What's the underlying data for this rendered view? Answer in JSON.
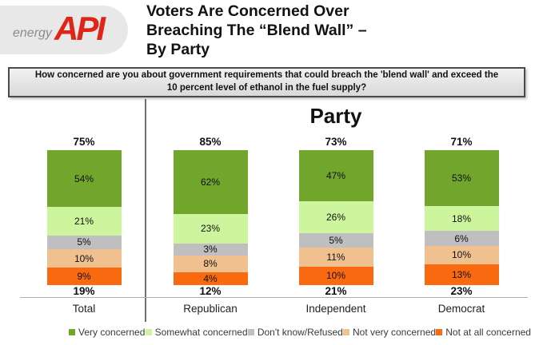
{
  "logo": {
    "energy_label": "energy",
    "api_label": "API"
  },
  "title": {
    "line1": "Voters Are Concerned Over",
    "line2": "Breaching The “Blend Wall” –",
    "line3": "By Party"
  },
  "question": "How concerned are you about government requirements that could breach the 'blend wall' and exceed the 10 percent level of ethanol in the fuel supply?",
  "party_heading": "Party",
  "chart_data": {
    "type": "bar",
    "stacked": true,
    "unit": "%",
    "grid": false,
    "legend_position": "bottom",
    "categories": [
      "Total",
      "Republican",
      "Independent",
      "Democrat"
    ],
    "series": [
      {
        "name": "Very concerned",
        "color": "#71A52C",
        "values": [
          54,
          62,
          47,
          53
        ]
      },
      {
        "name": "Somewhat concerned",
        "color": "#CDF59E",
        "values": [
          21,
          23,
          26,
          18
        ]
      },
      {
        "name": "Don't know/Refused",
        "color": "#BFBFBF",
        "values": [
          5,
          3,
          5,
          6
        ]
      },
      {
        "name": "Not very concerned",
        "color": "#F0C18F",
        "values": [
          10,
          8,
          11,
          10
        ]
      },
      {
        "name": "Not at all concerned",
        "color": "#F96A10",
        "values": [
          9,
          4,
          10,
          13
        ]
      }
    ],
    "total_concerned_labels": [
      "75%",
      "85%",
      "73%",
      "71%"
    ],
    "total_not_concerned_labels": [
      "19%",
      "12%",
      "21%",
      "23%"
    ]
  },
  "colors": {
    "logo_red": "#DF2518",
    "logo_pill_gray": "#E8E8E8",
    "question_box_border": "#4A4A4A",
    "axis_gray": "#B0B0B0"
  }
}
